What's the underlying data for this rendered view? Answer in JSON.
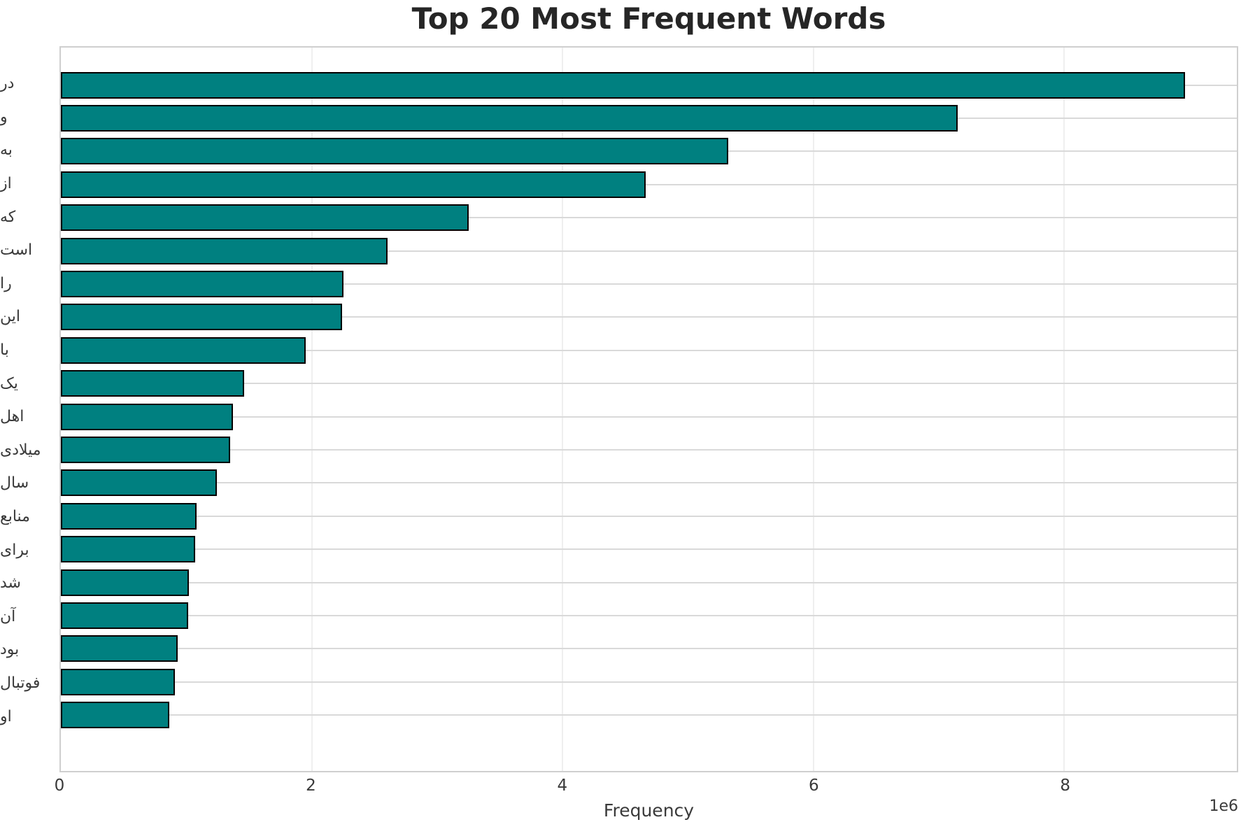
{
  "chart_data": {
    "type": "bar",
    "orientation": "horizontal",
    "title": "Top 20 Most Frequent Words",
    "xlabel": "Frequency",
    "axis_offset_label": "1e6",
    "categories": [
      "در",
      "و",
      "به",
      "از",
      "که",
      "است",
      "را",
      "این",
      "با",
      "یک",
      "اهل",
      "میلادی",
      "سال",
      "منابع",
      "برای",
      "شد",
      "آن",
      "بود",
      "فوتبال",
      "او"
    ],
    "values": [
      8940000,
      7130000,
      5300000,
      4640000,
      3230000,
      2580000,
      2230000,
      2220000,
      1930000,
      1440000,
      1350000,
      1330000,
      1220000,
      1060000,
      1050000,
      1000000,
      995000,
      910000,
      885000,
      845000
    ],
    "xlim": [
      0,
      9376000
    ],
    "xticks": [
      {
        "value": 0,
        "label": "0"
      },
      {
        "value": 2000000,
        "label": "2"
      },
      {
        "value": 4000000,
        "label": "4"
      },
      {
        "value": 6000000,
        "label": "6"
      },
      {
        "value": 8000000,
        "label": "8"
      }
    ],
    "grid": true,
    "legend_position": "none",
    "bar_color": "#008080",
    "bar_edge_color": "#000000",
    "grid_color_vertical": "#efefef",
    "grid_color_horizontal": "#d9d9d9"
  }
}
